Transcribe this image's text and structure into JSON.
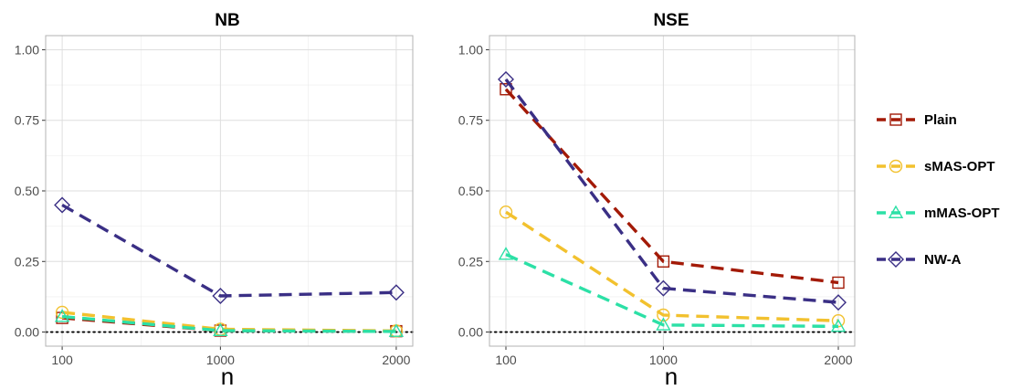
{
  "chart_data": {
    "type": "line",
    "xlabel": "n",
    "x": [
      100,
      1000,
      2000
    ],
    "xticks": [
      "100",
      "1000",
      "2000"
    ],
    "ylim": [
      0,
      1
    ],
    "yticks": [
      "0.00",
      "0.25",
      "0.50",
      "0.75",
      "1.00"
    ],
    "grid": true,
    "reference_line": {
      "y": 0,
      "style": "dotted",
      "color": "#000000"
    },
    "legend": {
      "placement": "right",
      "entries": [
        {
          "name": "Plain",
          "color": "#A31A07",
          "marker": "square"
        },
        {
          "name": "sMAS-OPT",
          "color": "#F2C12E",
          "marker": "circle"
        },
        {
          "name": "mMAS-OPT",
          "color": "#2CE0A6",
          "marker": "triangle"
        },
        {
          "name": "NW-A",
          "color": "#3A2F85",
          "marker": "diamond"
        }
      ]
    },
    "panels": [
      {
        "title": "NB",
        "series": [
          {
            "name": "Plain",
            "values": [
              0.05,
              0.005,
              0.003
            ]
          },
          {
            "name": "sMAS-OPT",
            "values": [
              0.07,
              0.01,
              0.004
            ]
          },
          {
            "name": "mMAS-OPT",
            "values": [
              0.055,
              0.005,
              0.002
            ]
          },
          {
            "name": "NW-A",
            "values": [
              0.45,
              0.128,
              0.14
            ]
          }
        ]
      },
      {
        "title": "NSE",
        "series": [
          {
            "name": "Plain",
            "values": [
              0.86,
              0.25,
              0.175
            ]
          },
          {
            "name": "sMAS-OPT",
            "values": [
              0.425,
              0.06,
              0.04
            ]
          },
          {
            "name": "mMAS-OPT",
            "values": [
              0.275,
              0.025,
              0.02
            ]
          },
          {
            "name": "NW-A",
            "values": [
              0.895,
              0.155,
              0.105
            ]
          }
        ]
      }
    ]
  }
}
